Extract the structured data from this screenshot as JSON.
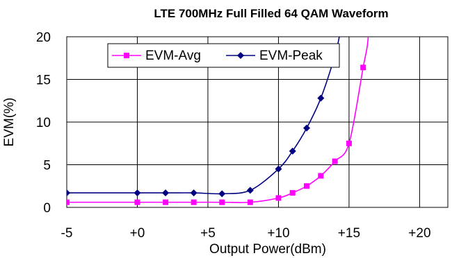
{
  "chart_data": {
    "type": "line",
    "title": "LTE  700MHz Full Filled 64 QAM Waveform",
    "xlabel": "Output Power(dBm)",
    "ylabel": "EVM(%)",
    "xlim": [
      -5,
      22
    ],
    "ylim": [
      0,
      20
    ],
    "x_ticks": [
      -5,
      0,
      5,
      10,
      15,
      20
    ],
    "x_tick_labels": [
      "-5",
      "+0",
      "+5",
      "+10",
      "+15",
      "+20"
    ],
    "y_ticks": [
      0,
      5,
      10,
      15,
      20
    ],
    "y_tick_labels": [
      "0",
      "5",
      "10",
      "15",
      "20"
    ],
    "grid": true,
    "legend_position": "top-center",
    "series": [
      {
        "name": "EVM-Avg",
        "color": "#FF00FF",
        "marker": "square",
        "x": [
          -5,
          0,
          2,
          4,
          6,
          8,
          10,
          11,
          12,
          13,
          14,
          15,
          16
        ],
        "y": [
          0.6,
          0.6,
          0.6,
          0.6,
          0.6,
          0.6,
          1.1,
          1.7,
          2.5,
          3.7,
          5.4,
          7.5,
          16.4
        ],
        "curve_tail": [
          [
            16.3,
            19
          ],
          [
            16.45,
            22
          ]
        ]
      },
      {
        "name": "EVM-Peak",
        "color": "#000080",
        "marker": "diamond",
        "x": [
          -5,
          0,
          2,
          4,
          6,
          8,
          10,
          11,
          12,
          13,
          14
        ],
        "y": [
          1.7,
          1.7,
          1.7,
          1.7,
          1.6,
          2.0,
          4.5,
          6.6,
          9.3,
          12.8,
          17.8
        ],
        "curve_tail": [
          [
            14.35,
            20.3
          ],
          [
            14.6,
            22
          ]
        ]
      }
    ]
  }
}
